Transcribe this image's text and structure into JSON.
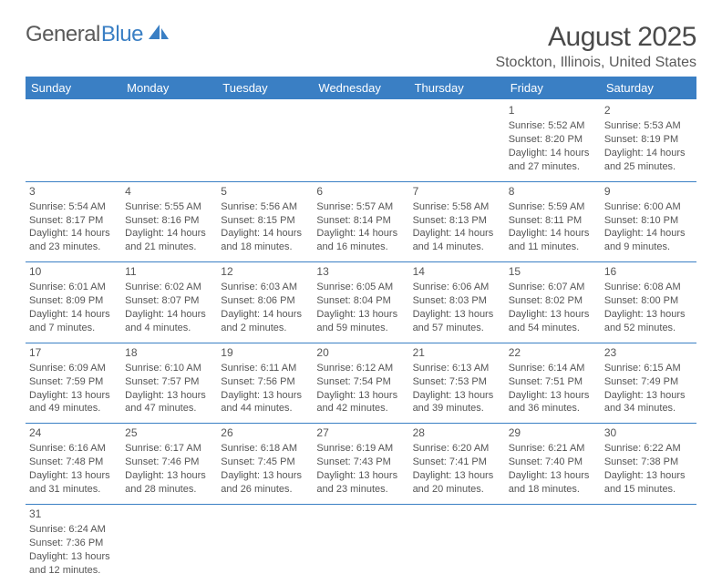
{
  "logo": {
    "text1": "General",
    "text2": "Blue"
  },
  "title": "August 2025",
  "location": "Stockton, Illinois, United States",
  "colors": {
    "header_bg": "#3a7fc4",
    "header_text": "#ffffff",
    "border": "#3a7fc4",
    "text": "#555555",
    "background": "#ffffff"
  },
  "fonts": {
    "title_size": 30,
    "location_size": 16,
    "day_header_size": 13,
    "cell_size": 11
  },
  "day_headers": [
    "Sunday",
    "Monday",
    "Tuesday",
    "Wednesday",
    "Thursday",
    "Friday",
    "Saturday"
  ],
  "weeks": [
    [
      null,
      null,
      null,
      null,
      null,
      {
        "n": "1",
        "sr": "Sunrise: 5:52 AM",
        "ss": "Sunset: 8:20 PM",
        "d1": "Daylight: 14 hours",
        "d2": "and 27 minutes."
      },
      {
        "n": "2",
        "sr": "Sunrise: 5:53 AM",
        "ss": "Sunset: 8:19 PM",
        "d1": "Daylight: 14 hours",
        "d2": "and 25 minutes."
      }
    ],
    [
      {
        "n": "3",
        "sr": "Sunrise: 5:54 AM",
        "ss": "Sunset: 8:17 PM",
        "d1": "Daylight: 14 hours",
        "d2": "and 23 minutes."
      },
      {
        "n": "4",
        "sr": "Sunrise: 5:55 AM",
        "ss": "Sunset: 8:16 PM",
        "d1": "Daylight: 14 hours",
        "d2": "and 21 minutes."
      },
      {
        "n": "5",
        "sr": "Sunrise: 5:56 AM",
        "ss": "Sunset: 8:15 PM",
        "d1": "Daylight: 14 hours",
        "d2": "and 18 minutes."
      },
      {
        "n": "6",
        "sr": "Sunrise: 5:57 AM",
        "ss": "Sunset: 8:14 PM",
        "d1": "Daylight: 14 hours",
        "d2": "and 16 minutes."
      },
      {
        "n": "7",
        "sr": "Sunrise: 5:58 AM",
        "ss": "Sunset: 8:13 PM",
        "d1": "Daylight: 14 hours",
        "d2": "and 14 minutes."
      },
      {
        "n": "8",
        "sr": "Sunrise: 5:59 AM",
        "ss": "Sunset: 8:11 PM",
        "d1": "Daylight: 14 hours",
        "d2": "and 11 minutes."
      },
      {
        "n": "9",
        "sr": "Sunrise: 6:00 AM",
        "ss": "Sunset: 8:10 PM",
        "d1": "Daylight: 14 hours",
        "d2": "and 9 minutes."
      }
    ],
    [
      {
        "n": "10",
        "sr": "Sunrise: 6:01 AM",
        "ss": "Sunset: 8:09 PM",
        "d1": "Daylight: 14 hours",
        "d2": "and 7 minutes."
      },
      {
        "n": "11",
        "sr": "Sunrise: 6:02 AM",
        "ss": "Sunset: 8:07 PM",
        "d1": "Daylight: 14 hours",
        "d2": "and 4 minutes."
      },
      {
        "n": "12",
        "sr": "Sunrise: 6:03 AM",
        "ss": "Sunset: 8:06 PM",
        "d1": "Daylight: 14 hours",
        "d2": "and 2 minutes."
      },
      {
        "n": "13",
        "sr": "Sunrise: 6:05 AM",
        "ss": "Sunset: 8:04 PM",
        "d1": "Daylight: 13 hours",
        "d2": "and 59 minutes."
      },
      {
        "n": "14",
        "sr": "Sunrise: 6:06 AM",
        "ss": "Sunset: 8:03 PM",
        "d1": "Daylight: 13 hours",
        "d2": "and 57 minutes."
      },
      {
        "n": "15",
        "sr": "Sunrise: 6:07 AM",
        "ss": "Sunset: 8:02 PM",
        "d1": "Daylight: 13 hours",
        "d2": "and 54 minutes."
      },
      {
        "n": "16",
        "sr": "Sunrise: 6:08 AM",
        "ss": "Sunset: 8:00 PM",
        "d1": "Daylight: 13 hours",
        "d2": "and 52 minutes."
      }
    ],
    [
      {
        "n": "17",
        "sr": "Sunrise: 6:09 AM",
        "ss": "Sunset: 7:59 PM",
        "d1": "Daylight: 13 hours",
        "d2": "and 49 minutes."
      },
      {
        "n": "18",
        "sr": "Sunrise: 6:10 AM",
        "ss": "Sunset: 7:57 PM",
        "d1": "Daylight: 13 hours",
        "d2": "and 47 minutes."
      },
      {
        "n": "19",
        "sr": "Sunrise: 6:11 AM",
        "ss": "Sunset: 7:56 PM",
        "d1": "Daylight: 13 hours",
        "d2": "and 44 minutes."
      },
      {
        "n": "20",
        "sr": "Sunrise: 6:12 AM",
        "ss": "Sunset: 7:54 PM",
        "d1": "Daylight: 13 hours",
        "d2": "and 42 minutes."
      },
      {
        "n": "21",
        "sr": "Sunrise: 6:13 AM",
        "ss": "Sunset: 7:53 PM",
        "d1": "Daylight: 13 hours",
        "d2": "and 39 minutes."
      },
      {
        "n": "22",
        "sr": "Sunrise: 6:14 AM",
        "ss": "Sunset: 7:51 PM",
        "d1": "Daylight: 13 hours",
        "d2": "and 36 minutes."
      },
      {
        "n": "23",
        "sr": "Sunrise: 6:15 AM",
        "ss": "Sunset: 7:49 PM",
        "d1": "Daylight: 13 hours",
        "d2": "and 34 minutes."
      }
    ],
    [
      {
        "n": "24",
        "sr": "Sunrise: 6:16 AM",
        "ss": "Sunset: 7:48 PM",
        "d1": "Daylight: 13 hours",
        "d2": "and 31 minutes."
      },
      {
        "n": "25",
        "sr": "Sunrise: 6:17 AM",
        "ss": "Sunset: 7:46 PM",
        "d1": "Daylight: 13 hours",
        "d2": "and 28 minutes."
      },
      {
        "n": "26",
        "sr": "Sunrise: 6:18 AM",
        "ss": "Sunset: 7:45 PM",
        "d1": "Daylight: 13 hours",
        "d2": "and 26 minutes."
      },
      {
        "n": "27",
        "sr": "Sunrise: 6:19 AM",
        "ss": "Sunset: 7:43 PM",
        "d1": "Daylight: 13 hours",
        "d2": "and 23 minutes."
      },
      {
        "n": "28",
        "sr": "Sunrise: 6:20 AM",
        "ss": "Sunset: 7:41 PM",
        "d1": "Daylight: 13 hours",
        "d2": "and 20 minutes."
      },
      {
        "n": "29",
        "sr": "Sunrise: 6:21 AM",
        "ss": "Sunset: 7:40 PM",
        "d1": "Daylight: 13 hours",
        "d2": "and 18 minutes."
      },
      {
        "n": "30",
        "sr": "Sunrise: 6:22 AM",
        "ss": "Sunset: 7:38 PM",
        "d1": "Daylight: 13 hours",
        "d2": "and 15 minutes."
      }
    ],
    [
      {
        "n": "31",
        "sr": "Sunrise: 6:24 AM",
        "ss": "Sunset: 7:36 PM",
        "d1": "Daylight: 13 hours",
        "d2": "and 12 minutes."
      },
      null,
      null,
      null,
      null,
      null,
      null
    ]
  ]
}
